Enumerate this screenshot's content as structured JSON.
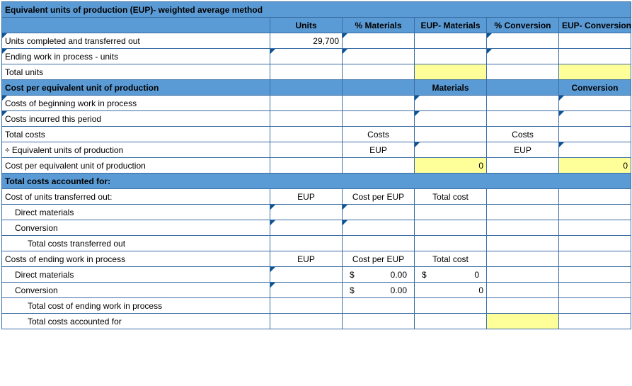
{
  "title": "Equivalent units of production (EUP)- weighted average method",
  "colhead": {
    "units": "Units",
    "pmat": "% Materials",
    "eupmat": "EUP- Materials",
    "pconv": "% Conversion",
    "eupconv": "EUP- Conversion"
  },
  "rows": {
    "r1": "Units completed and transferred out",
    "r1_units": "29,700",
    "r2": "Ending work in process - units",
    "r3": "Total units",
    "sec2": "Cost per equivalent unit of production",
    "sec2_mat": "Materials",
    "sec2_conv": "Conversion",
    "r4": "Costs of beginning work in process",
    "r5": "Costs incurred this period",
    "r6": "Total costs",
    "r6_costs1": "Costs",
    "r6_costs2": "Costs",
    "r7": "÷ Equivalent units of production",
    "r7_eup1": "EUP",
    "r7_eup2": "EUP",
    "r8": "Cost per equivalent unit of production",
    "r8_v1": "0",
    "r8_v2": "0",
    "sec3": "Total costs accounted for:",
    "r9": "Cost of units transferred out:",
    "r9_eup": "EUP",
    "r9_cpe": "Cost per EUP",
    "r9_tot": "Total cost",
    "r10": "Direct materials",
    "r11": "Conversion",
    "r12": "Total costs transferred out",
    "r13": "Costs of ending work in process",
    "r13_eup": "EUP",
    "r13_cpe": "Cost per EUP",
    "r13_tot": "Total cost",
    "r14": "Direct materials",
    "r14_cpe_sym": "$",
    "r14_cpe_val": "0.00",
    "r14_tot_sym": "$",
    "r14_tot_val": "0",
    "r15": "Conversion",
    "r15_cpe_sym": "$",
    "r15_cpe_val": "0.00",
    "r15_tot_val": "0",
    "r16": "Total cost of ending work in process",
    "r17": "Total costs accounted for"
  },
  "colors": {
    "header_bg": "#5b9bd5",
    "border": "#3a6ea5",
    "highlight": "#ffff99",
    "marker": "#0b5394"
  }
}
